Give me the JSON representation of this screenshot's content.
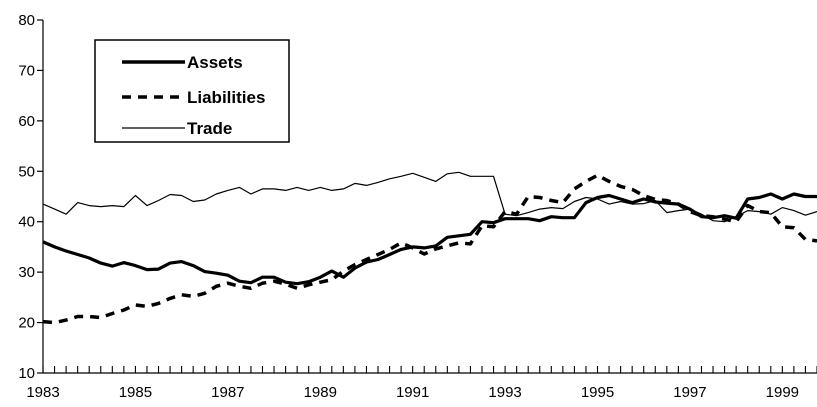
{
  "chart_data": {
    "type": "line",
    "title": "",
    "xlabel": "",
    "ylabel": "",
    "xlim": [
      1983,
      1999.75
    ],
    "ylim": [
      10,
      80
    ],
    "y_ticks": [
      10,
      20,
      30,
      40,
      50,
      60,
      70,
      80
    ],
    "x_tick_labels": [
      "1983",
      "1985",
      "1987",
      "1989",
      "1991",
      "1993",
      "1995",
      "1997",
      "1999"
    ],
    "x_minor_tick_interval": 0.25,
    "grid": false,
    "legend_position": "top-left",
    "x": [
      1983.0,
      1983.25,
      1983.5,
      1983.75,
      1984.0,
      1984.25,
      1984.5,
      1984.75,
      1985.0,
      1985.25,
      1985.5,
      1985.75,
      1986.0,
      1986.25,
      1986.5,
      1986.75,
      1987.0,
      1987.25,
      1987.5,
      1987.75,
      1988.0,
      1988.25,
      1988.5,
      1988.75,
      1989.0,
      1989.25,
      1989.5,
      1989.75,
      1990.0,
      1990.25,
      1990.5,
      1990.75,
      1991.0,
      1991.25,
      1991.5,
      1991.75,
      1992.0,
      1992.25,
      1992.5,
      1992.75,
      1993.0,
      1993.25,
      1993.5,
      1993.75,
      1994.0,
      1994.25,
      1994.5,
      1994.75,
      1995.0,
      1995.25,
      1995.5,
      1995.75,
      1996.0,
      1996.25,
      1996.5,
      1996.75,
      1997.0,
      1997.25,
      1997.5,
      1997.75,
      1998.0,
      1998.25,
      1998.5,
      1998.75,
      1999.0,
      1999.25,
      1999.5,
      1999.75
    ],
    "series": [
      {
        "name": "Assets",
        "style": "thick-solid",
        "values": [
          36.0,
          35.0,
          34.2,
          33.5,
          32.8,
          31.8,
          31.2,
          31.9,
          31.3,
          30.5,
          30.6,
          31.8,
          32.1,
          31.3,
          30.1,
          29.8,
          29.4,
          28.2,
          27.9,
          29.0,
          29.0,
          28.0,
          27.7,
          28.1,
          29.0,
          30.2,
          29.0,
          30.8,
          32.0,
          32.5,
          33.5,
          34.5,
          35.0,
          34.8,
          35.2,
          36.9,
          37.2,
          37.5,
          40.0,
          39.8,
          40.6,
          40.6,
          40.6,
          40.2,
          41.0,
          40.8,
          40.8,
          43.8,
          44.8,
          45.2,
          44.5,
          43.8,
          44.5,
          43.9,
          43.7,
          43.5,
          42.5,
          41.0,
          40.8,
          41.2,
          40.7,
          44.5,
          44.8,
          45.5,
          44.5,
          45.5,
          45.0,
          45.0
        ]
      },
      {
        "name": "Liabilities",
        "style": "dashed",
        "values": [
          20.2,
          20.0,
          20.5,
          21.2,
          21.2,
          21.0,
          21.8,
          22.5,
          23.5,
          23.2,
          23.8,
          24.8,
          25.5,
          25.2,
          25.8,
          27.2,
          27.8,
          27.2,
          26.8,
          27.8,
          28.2,
          27.6,
          26.8,
          27.5,
          28.0,
          28.5,
          30.2,
          31.5,
          32.5,
          33.5,
          34.5,
          35.8,
          34.8,
          33.6,
          34.6,
          35.2,
          35.8,
          35.6,
          39.2,
          39.0,
          42.0,
          41.5,
          45.0,
          44.8,
          44.2,
          43.8,
          46.5,
          48.0,
          49.2,
          48.0,
          47.0,
          46.4,
          45.2,
          44.4,
          44.2,
          43.5,
          42.0,
          41.2,
          41.0,
          40.5,
          40.0,
          43.2,
          42.0,
          41.8,
          39.0,
          38.8,
          36.5,
          36.2
        ]
      },
      {
        "name": "Trade",
        "style": "thin-solid",
        "values": [
          43.5,
          42.5,
          41.5,
          43.8,
          43.2,
          43.0,
          43.2,
          43.0,
          45.2,
          43.2,
          44.2,
          45.4,
          45.2,
          44.0,
          44.3,
          45.5,
          46.2,
          46.8,
          45.5,
          46.5,
          46.5,
          46.2,
          46.8,
          46.2,
          46.8,
          46.2,
          46.5,
          47.6,
          47.2,
          47.8,
          48.5,
          49.0,
          49.6,
          48.8,
          48.0,
          49.5,
          49.8,
          49.0,
          49.0,
          49.0,
          41.5,
          41.2,
          41.8,
          42.5,
          42.8,
          42.6,
          44.0,
          44.8,
          44.5,
          43.5,
          44.0,
          43.5,
          43.6,
          44.2,
          41.8,
          42.2,
          42.5,
          41.5,
          40.2,
          40.0,
          41.0,
          42.2,
          42.0,
          41.5,
          42.8,
          42.2,
          41.3,
          42.0
        ]
      }
    ]
  }
}
